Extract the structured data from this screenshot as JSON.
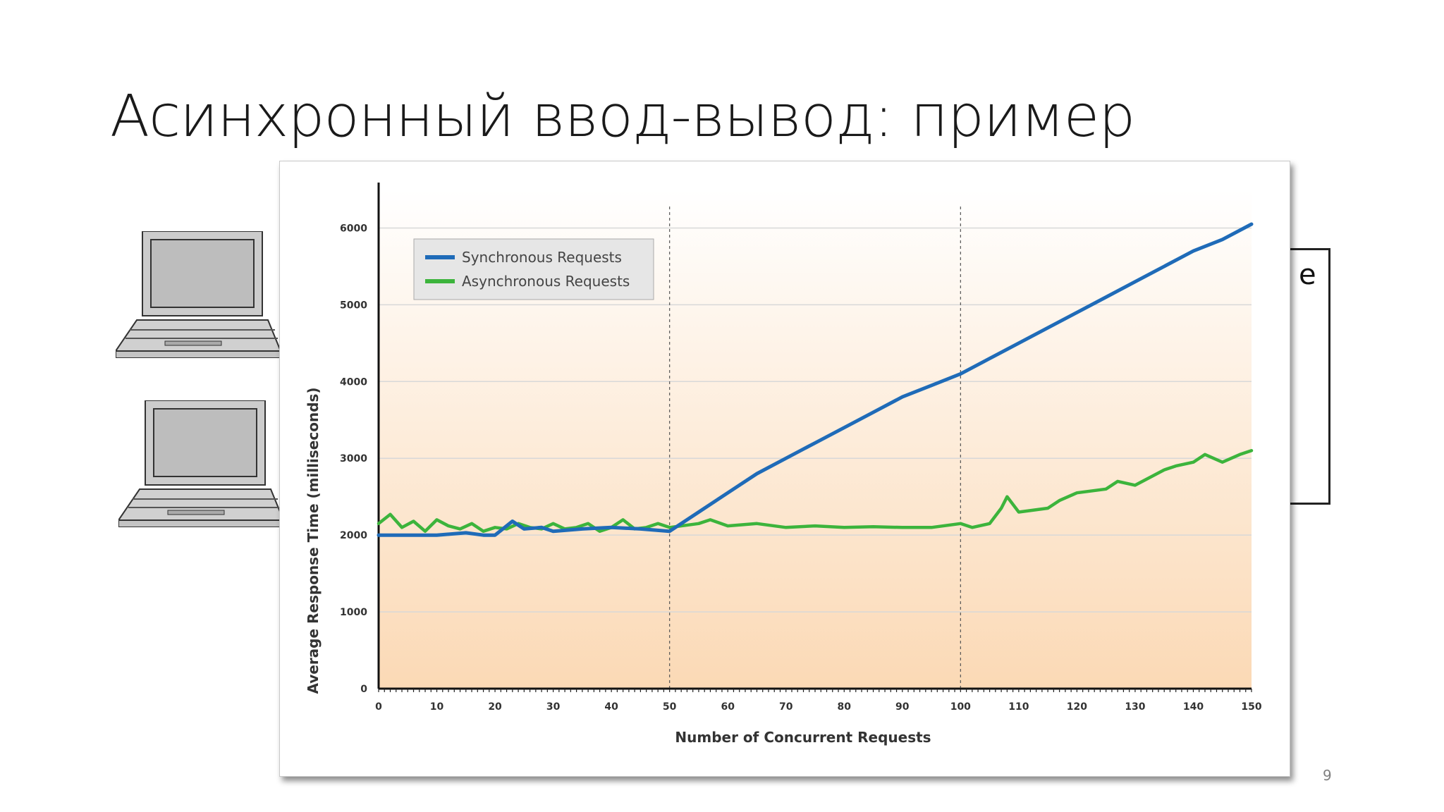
{
  "slide": {
    "title": "Асинхронный ввод-вывод: пример",
    "page_number": "9",
    "right_box_fragment": "e"
  },
  "colors": {
    "sync": "#1f6bb8",
    "async": "#3cb43c",
    "plot_bg_top": "#ffffff",
    "plot_bg_bottom": "#fbd9b5"
  },
  "icons": [
    "laptop-icon",
    "laptop-icon"
  ],
  "chart_data": {
    "type": "line",
    "title": "",
    "xlabel": "Number of Concurrent Requests",
    "ylabel": "Average Response  Time (milliseconds)",
    "xlim": [
      0,
      150
    ],
    "ylim": [
      0,
      6500
    ],
    "x_ticks": [
      0,
      10,
      20,
      30,
      40,
      50,
      60,
      70,
      80,
      90,
      100,
      110,
      120,
      130,
      140,
      150
    ],
    "y_ticks": [
      0,
      1000,
      2000,
      3000,
      4000,
      5000,
      6000
    ],
    "vertical_reference_lines": [
      50,
      100
    ],
    "grid": "horizontal",
    "legend_position": "top-left",
    "series": [
      {
        "name": "Synchronous Requests",
        "x": [
          0,
          5,
          10,
          15,
          18,
          20,
          23,
          25,
          28,
          30,
          35,
          40,
          45,
          50,
          55,
          60,
          65,
          70,
          75,
          80,
          85,
          90,
          95,
          100,
          105,
          110,
          115,
          120,
          125,
          130,
          135,
          140,
          145,
          150
        ],
        "y": [
          2000,
          2000,
          2000,
          2030,
          2000,
          2000,
          2180,
          2080,
          2100,
          2050,
          2080,
          2100,
          2080,
          2050,
          2300,
          2550,
          2800,
          3000,
          3200,
          3400,
          3600,
          3800,
          3950,
          4100,
          4300,
          4500,
          4700,
          4900,
          5100,
          5300,
          5500,
          5700,
          5850,
          6050
        ]
      },
      {
        "name": "Asynchronous Requests",
        "x": [
          0,
          2,
          4,
          6,
          8,
          10,
          12,
          14,
          16,
          18,
          20,
          22,
          24,
          26,
          28,
          30,
          32,
          34,
          36,
          38,
          40,
          42,
          44,
          46,
          48,
          50,
          55,
          57,
          60,
          65,
          70,
          75,
          80,
          85,
          90,
          95,
          100,
          102,
          105,
          107,
          108,
          110,
          115,
          117,
          120,
          125,
          127,
          130,
          135,
          137,
          140,
          142,
          145,
          148,
          150
        ],
        "y": [
          2150,
          2270,
          2100,
          2180,
          2050,
          2200,
          2120,
          2080,
          2150,
          2050,
          2100,
          2080,
          2150,
          2100,
          2080,
          2150,
          2080,
          2100,
          2150,
          2050,
          2100,
          2200,
          2080,
          2100,
          2150,
          2100,
          2150,
          2200,
          2120,
          2150,
          2100,
          2120,
          2100,
          2110,
          2100,
          2100,
          2150,
          2100,
          2150,
          2350,
          2500,
          2300,
          2350,
          2450,
          2550,
          2600,
          2700,
          2650,
          2850,
          2900,
          2950,
          3050,
          2950,
          3050,
          3100
        ]
      }
    ]
  }
}
